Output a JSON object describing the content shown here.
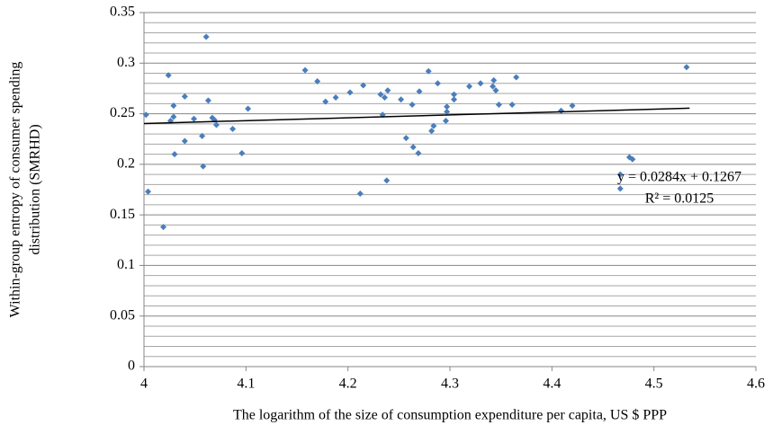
{
  "chart_data": {
    "type": "scatter",
    "ylabel": [
      "Within-group entropy of consumer spending",
      "distribution (SMRHD)"
    ],
    "xlabel": "The logarithm of the size of consumption expenditure per capita, US $ PPP",
    "xlim": [
      4,
      4.6
    ],
    "xticks": [
      4,
      4.1,
      4.2,
      4.3,
      4.4,
      4.5,
      4.6
    ],
    "ylim": [
      0,
      0.35
    ],
    "yticks": [
      0,
      0.05,
      0.1,
      0.15,
      0.2,
      0.25,
      0.3,
      0.35
    ],
    "grid": true,
    "minor_grid": true,
    "color": "#4a7ebb",
    "x": [
      4.002,
      4.004,
      4.019,
      4.024,
      4.026,
      4.029,
      4.029,
      4.03,
      4.04,
      4.04,
      4.049,
      4.057,
      4.058,
      4.061,
      4.063,
      4.067,
      4.069,
      4.071,
      4.087,
      4.096,
      4.102,
      4.158,
      4.17,
      4.178,
      4.188,
      4.202,
      4.215,
      4.212,
      4.232,
      4.234,
      4.236,
      4.239,
      4.238,
      4.252,
      4.257,
      4.263,
      4.264,
      4.27,
      4.269,
      4.279,
      4.282,
      4.284,
      4.288,
      4.296,
      4.297,
      4.297,
      4.304,
      4.304,
      4.319,
      4.33,
      4.342,
      4.343,
      4.345,
      4.348,
      4.361,
      4.365,
      4.409,
      4.42,
      4.467,
      4.467,
      4.476,
      4.479,
      4.532
    ],
    "values": [
      0.249,
      0.173,
      0.138,
      0.288,
      0.243,
      0.258,
      0.247,
      0.21,
      0.223,
      0.267,
      0.245,
      0.228,
      0.198,
      0.326,
      0.263,
      0.246,
      0.244,
      0.239,
      0.235,
      0.211,
      0.255,
      0.293,
      0.282,
      0.262,
      0.266,
      0.271,
      0.278,
      0.171,
      0.269,
      0.249,
      0.266,
      0.273,
      0.184,
      0.264,
      0.226,
      0.259,
      0.217,
      0.272,
      0.211,
      0.292,
      0.233,
      0.238,
      0.28,
      0.243,
      0.257,
      0.252,
      0.269,
      0.264,
      0.277,
      0.28,
      0.277,
      0.283,
      0.273,
      0.259,
      0.259,
      0.286,
      0.253,
      0.258,
      0.19,
      0.176,
      0.207,
      0.205,
      0.296
    ],
    "trendline": {
      "slope": 0.0284,
      "intercept": 0.1267,
      "xlim": [
        4,
        4.535
      ],
      "color": "#000000",
      "equation": "y = 0.0284x + 0.1267",
      "r2_label": "R² = 0.0125"
    }
  }
}
